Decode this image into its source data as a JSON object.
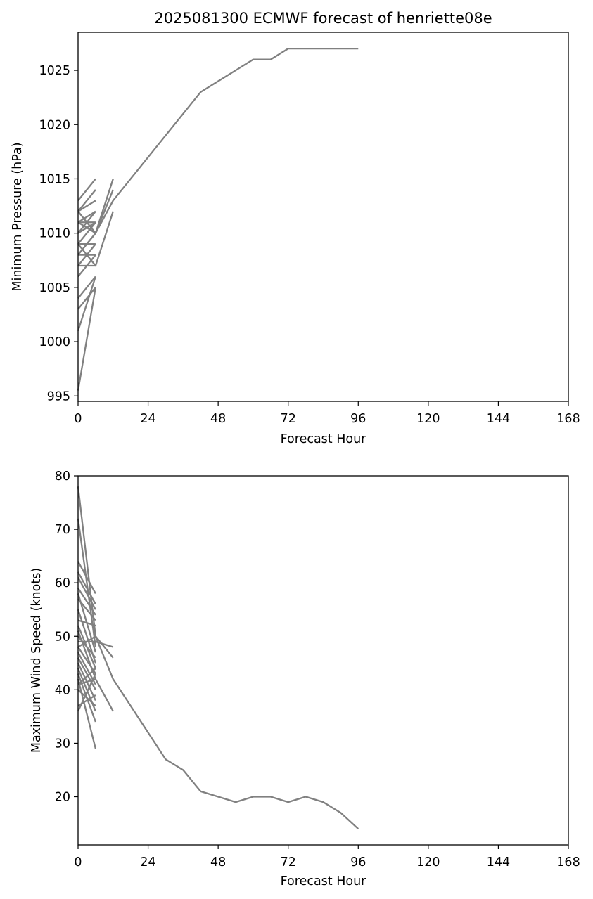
{
  "chart_data": [
    {
      "type": "line",
      "title": "2025081300 ECMWF forecast of henriette08e",
      "xlabel": "Forecast Hour",
      "ylabel": "Minimum Pressure (hPa)",
      "xlim": [
        0,
        168
      ],
      "ylim": [
        994.5,
        1028.5
      ],
      "xticks": [
        0,
        24,
        48,
        72,
        96,
        120,
        144,
        168
      ],
      "yticks": [
        995,
        1000,
        1005,
        1010,
        1015,
        1020,
        1025
      ],
      "grid": false,
      "line_color": "#808080",
      "series": [
        {
          "x": [
            0,
            6,
            12,
            18,
            24,
            30,
            36,
            42,
            48,
            54,
            60,
            66,
            72,
            78,
            84,
            90,
            96
          ],
          "y": [
            1011,
            1010,
            1013,
            1015,
            1017,
            1019,
            1021,
            1023,
            1024,
            1025,
            1026,
            1026,
            1027,
            1027,
            1027,
            1027,
            1027
          ]
        },
        {
          "x": [
            0,
            6,
            12
          ],
          "y": [
            1012,
            1010,
            1015
          ]
        },
        {
          "x": [
            0,
            6,
            12
          ],
          "y": [
            1008,
            1010,
            1014
          ]
        },
        {
          "x": [
            0,
            6,
            12
          ],
          "y": [
            1009,
            1007,
            1012
          ]
        },
        {
          "x": [
            0,
            6
          ],
          "y": [
            1013,
            1015
          ]
        },
        {
          "x": [
            0,
            6
          ],
          "y": [
            1012,
            1014
          ]
        },
        {
          "x": [
            0,
            6
          ],
          "y": [
            1012,
            1013
          ]
        },
        {
          "x": [
            0,
            6
          ],
          "y": [
            1011,
            1012
          ]
        },
        {
          "x": [
            0,
            6
          ],
          "y": [
            1011,
            1011
          ]
        },
        {
          "x": [
            0,
            6
          ],
          "y": [
            1010,
            1012
          ]
        },
        {
          "x": [
            0,
            6
          ],
          "y": [
            1010,
            1011
          ]
        },
        {
          "x": [
            0,
            6
          ],
          "y": [
            1009,
            1011
          ]
        },
        {
          "x": [
            0,
            6
          ],
          "y": [
            1009,
            1009
          ]
        },
        {
          "x": [
            0,
            6
          ],
          "y": [
            1008,
            1010
          ]
        },
        {
          "x": [
            0,
            6
          ],
          "y": [
            1008,
            1008
          ]
        },
        {
          "x": [
            0,
            6
          ],
          "y": [
            1007,
            1009
          ]
        },
        {
          "x": [
            0,
            6
          ],
          "y": [
            1007,
            1007
          ]
        },
        {
          "x": [
            0,
            6
          ],
          "y": [
            1006,
            1008
          ]
        },
        {
          "x": [
            0,
            6
          ],
          "y": [
            1004,
            1006
          ]
        },
        {
          "x": [
            0,
            6
          ],
          "y": [
            1003,
            1005
          ]
        },
        {
          "x": [
            0,
            6
          ],
          "y": [
            1001,
            1006
          ]
        },
        {
          "x": [
            0,
            6
          ],
          "y": [
            995.5,
            1005
          ]
        }
      ]
    },
    {
      "type": "line",
      "title": "",
      "xlabel": "Forecast Hour",
      "ylabel": "Maximum Wind Speed (knots)",
      "xlim": [
        0,
        168
      ],
      "ylim": [
        11,
        80
      ],
      "xticks": [
        0,
        24,
        48,
        72,
        96,
        120,
        144,
        168
      ],
      "yticks": [
        20,
        30,
        40,
        50,
        60,
        70,
        80
      ],
      "grid": false,
      "line_color": "#808080",
      "series": [
        {
          "x": [
            0,
            6,
            12,
            18,
            24,
            30,
            36,
            42,
            48,
            54,
            60,
            66,
            72,
            78,
            84,
            90,
            96
          ],
          "y": [
            48,
            50,
            42,
            37,
            32,
            27,
            25,
            21,
            20,
            19,
            20,
            20,
            19,
            20,
            19,
            17,
            14
          ]
        },
        {
          "x": [
            0,
            6,
            12
          ],
          "y": [
            78,
            50,
            46
          ]
        },
        {
          "x": [
            0,
            6,
            12
          ],
          "y": [
            49,
            49,
            48
          ]
        },
        {
          "x": [
            0,
            6,
            12
          ],
          "y": [
            41,
            42,
            36
          ]
        },
        {
          "x": [
            0,
            6
          ],
          "y": [
            72,
            48
          ]
        },
        {
          "x": [
            0,
            6
          ],
          "y": [
            64,
            58
          ]
        },
        {
          "x": [
            0,
            6
          ],
          "y": [
            62,
            56
          ]
        },
        {
          "x": [
            0,
            6
          ],
          "y": [
            61,
            55
          ]
        },
        {
          "x": [
            0,
            6
          ],
          "y": [
            59,
            54
          ]
        },
        {
          "x": [
            0,
            6
          ],
          "y": [
            58,
            47
          ]
        },
        {
          "x": [
            0,
            6
          ],
          "y": [
            57,
            53
          ]
        },
        {
          "x": [
            0,
            6
          ],
          "y": [
            55,
            45
          ]
        },
        {
          "x": [
            0,
            6
          ],
          "y": [
            53,
            52
          ]
        },
        {
          "x": [
            0,
            6
          ],
          "y": [
            52,
            44
          ]
        },
        {
          "x": [
            0,
            6
          ],
          "y": [
            51,
            42
          ]
        },
        {
          "x": [
            0,
            6
          ],
          "y": [
            50,
            46
          ]
        },
        {
          "x": [
            0,
            6
          ],
          "y": [
            48,
            43
          ]
        },
        {
          "x": [
            0,
            6
          ],
          "y": [
            47,
            41
          ]
        },
        {
          "x": [
            0,
            6
          ],
          "y": [
            46,
            40
          ]
        },
        {
          "x": [
            0,
            6
          ],
          "y": [
            45,
            38
          ]
        },
        {
          "x": [
            0,
            6
          ],
          "y": [
            44,
            36
          ]
        },
        {
          "x": [
            0,
            6
          ],
          "y": [
            43,
            34
          ]
        },
        {
          "x": [
            0,
            6
          ],
          "y": [
            42,
            29
          ]
        },
        {
          "x": [
            0,
            6
          ],
          "y": [
            41,
            44
          ]
        },
        {
          "x": [
            0,
            6
          ],
          "y": [
            40,
            37
          ]
        },
        {
          "x": [
            0,
            6
          ],
          "y": [
            37,
            39
          ]
        },
        {
          "x": [
            0,
            6
          ],
          "y": [
            36,
            43
          ]
        }
      ]
    }
  ]
}
